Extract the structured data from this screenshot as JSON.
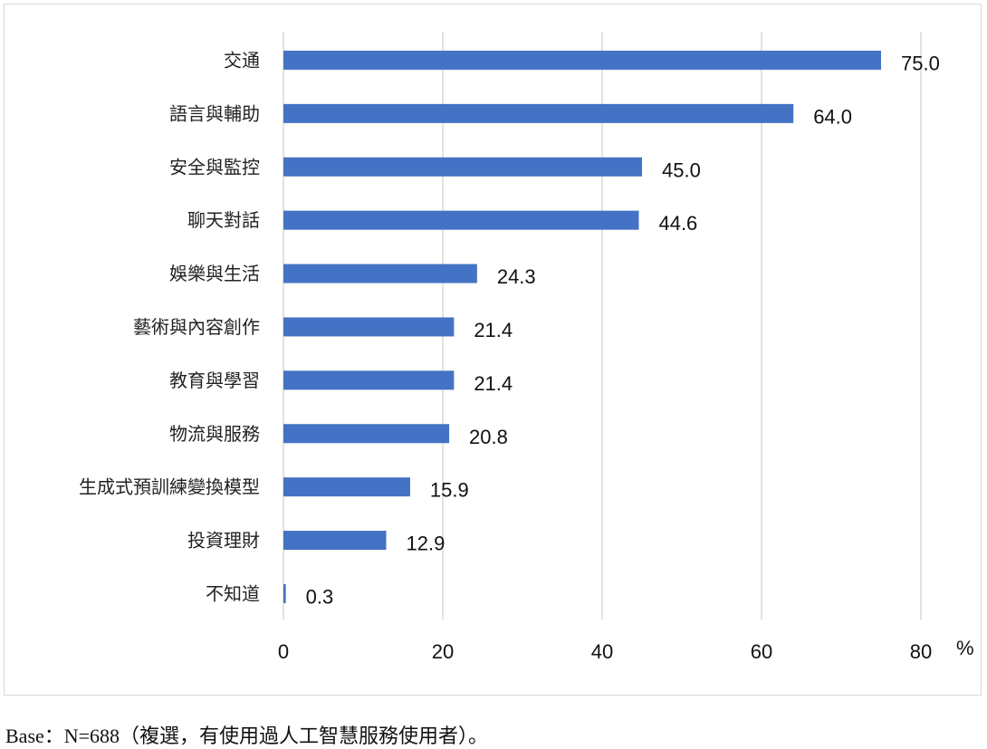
{
  "chart_data": {
    "type": "bar",
    "orientation": "horizontal",
    "categories": [
      "交通",
      "語言與輔助",
      "安全與監控",
      "聊天對話",
      "娛樂與生活",
      "藝術與內容創作",
      "教育與學習",
      "物流與服務",
      "生成式預訓練變換模型",
      "投資理財",
      "不知道"
    ],
    "values": [
      75.0,
      64.0,
      45.0,
      44.6,
      24.3,
      21.4,
      21.4,
      20.8,
      15.9,
      12.9,
      0.3
    ],
    "value_labels": [
      "75.0",
      "64.0",
      "45.0",
      "44.6",
      "24.3",
      "21.4",
      "21.4",
      "20.8",
      "15.9",
      "12.9",
      "0.3"
    ],
    "xlim": [
      0,
      80
    ],
    "xticks": [
      0,
      20,
      40,
      60,
      80
    ],
    "xunit": "%",
    "grid": "vertical",
    "bar_color": "#4472C4",
    "grid_color": "#d9d9d9"
  },
  "footnote": "Base：N=688（複選，有使用過人工智慧服務使用者）。"
}
